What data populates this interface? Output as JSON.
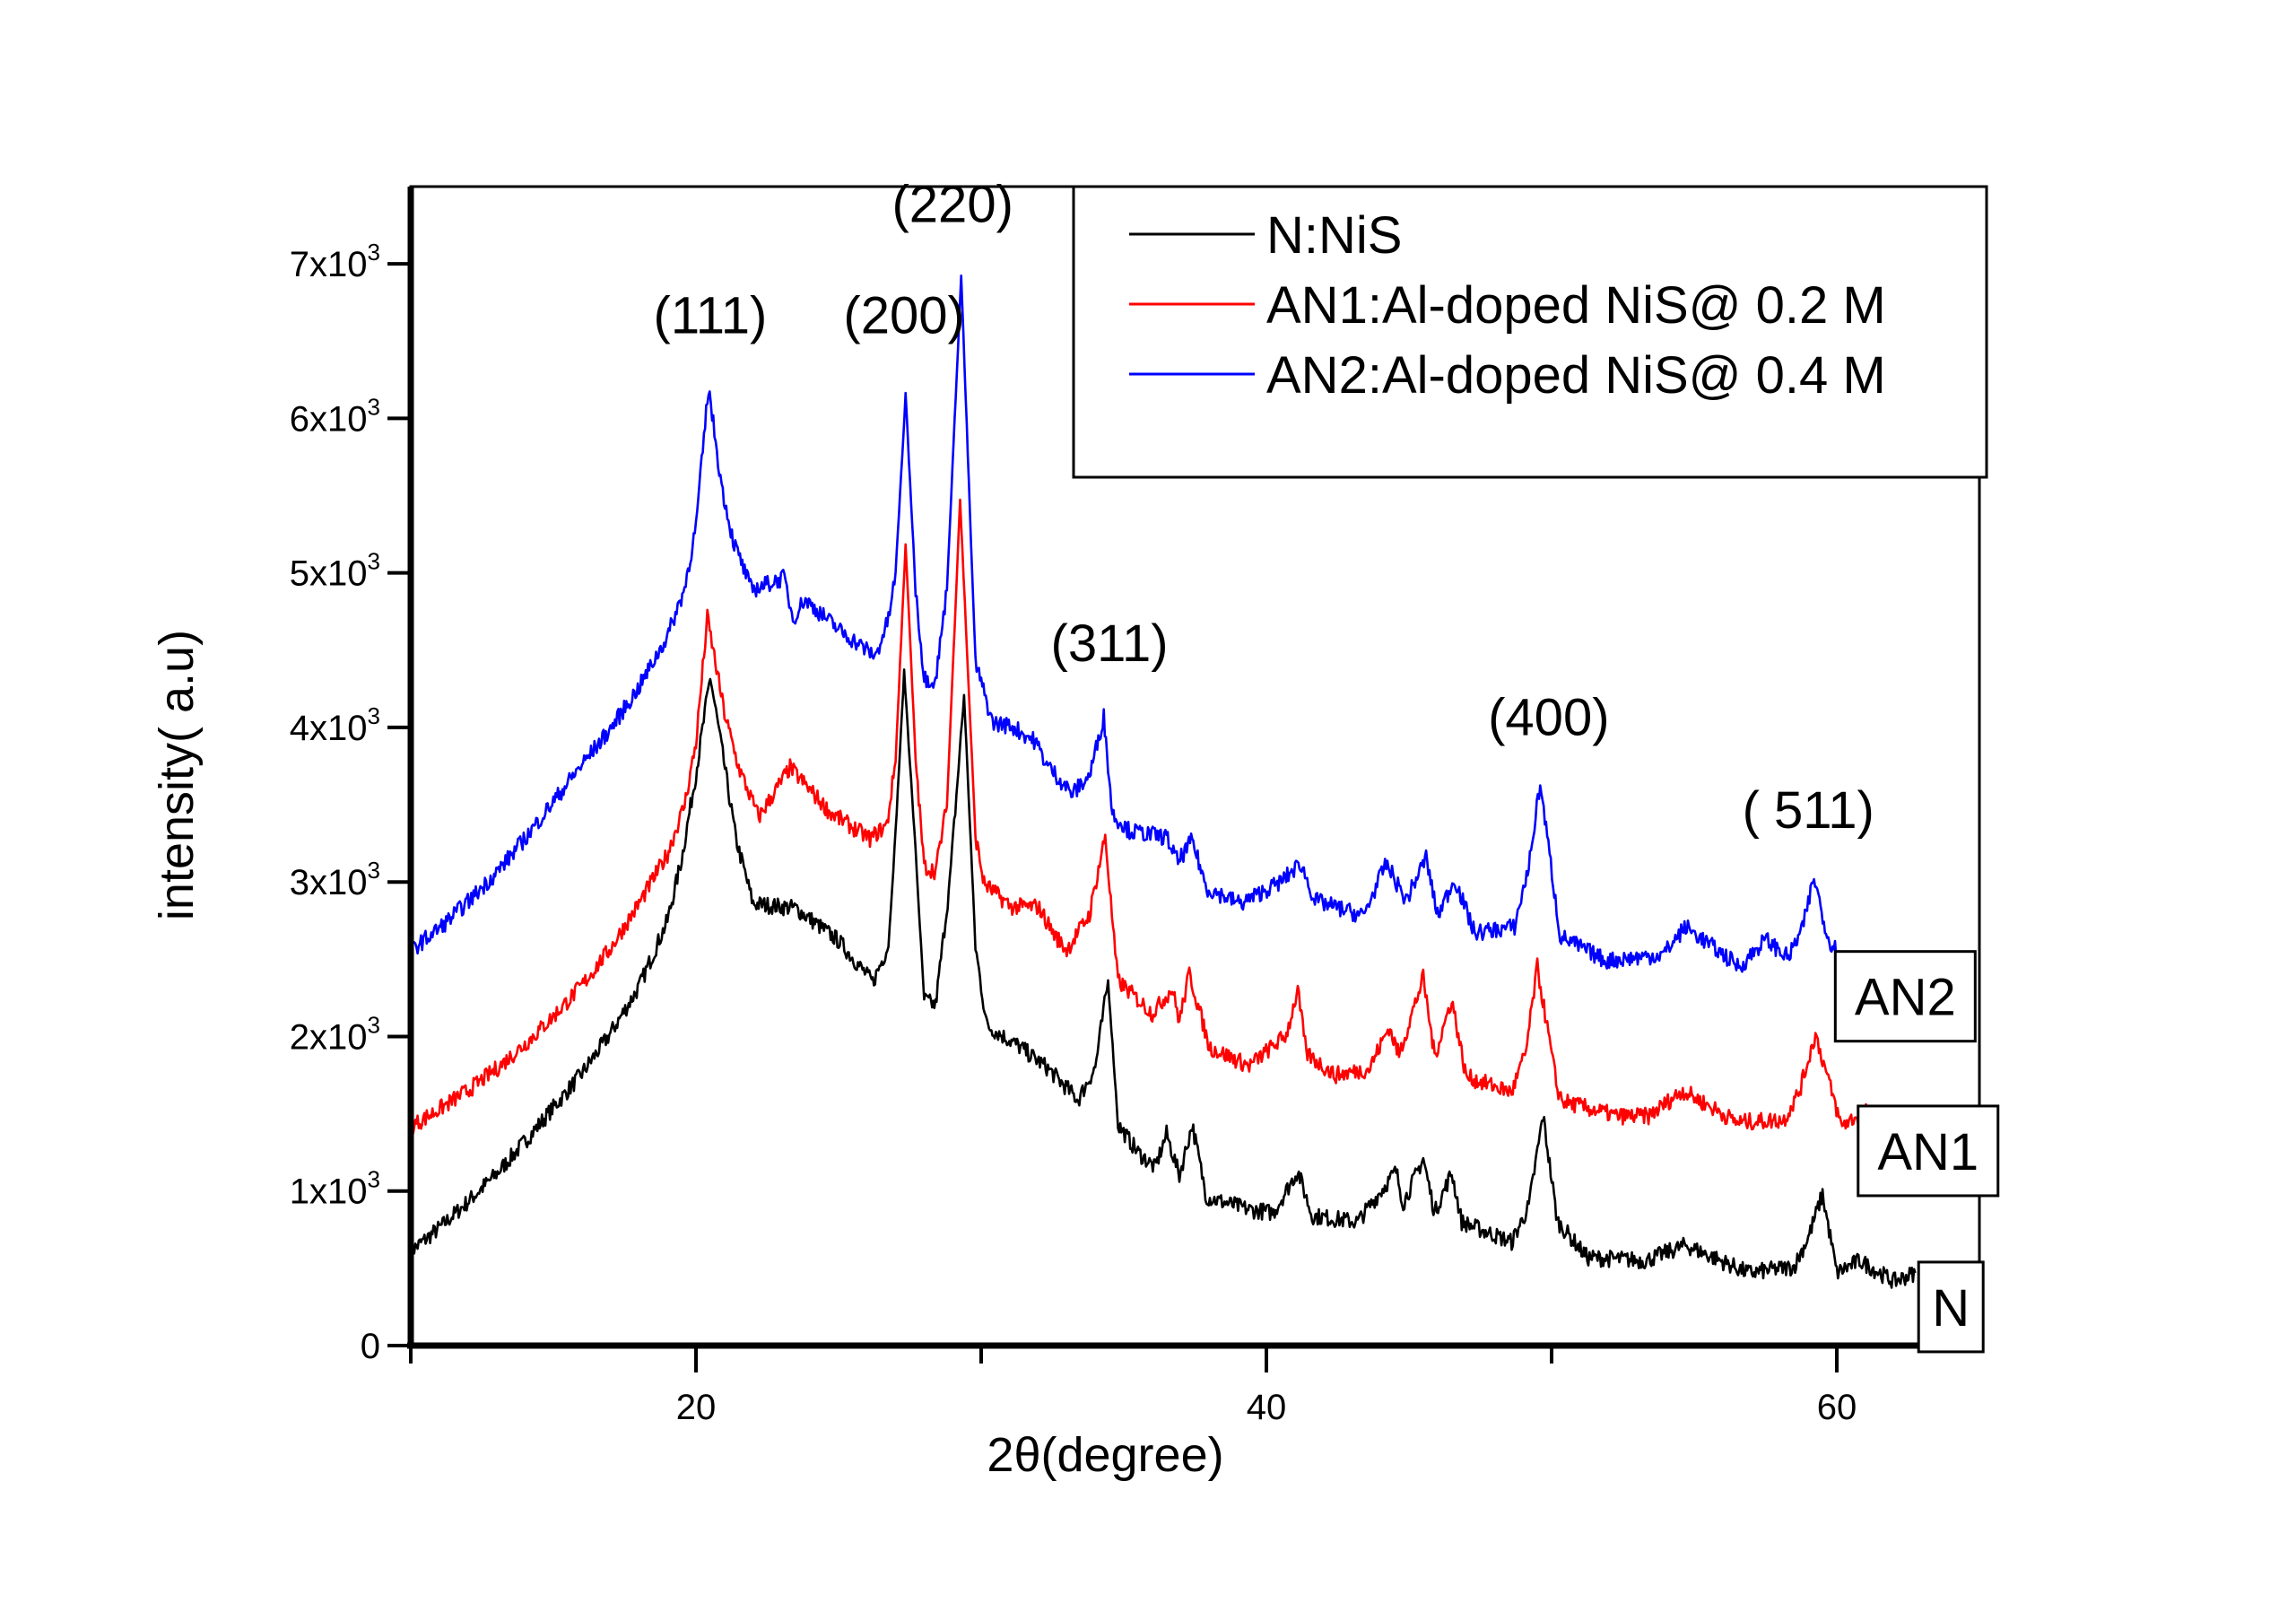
{
  "chart_data": {
    "type": "line",
    "title": "",
    "xlabel": "2θ(degree)",
    "ylabel": "intensity( a.u)",
    "xlim": [
      10,
      65
    ],
    "ylim": [
      0,
      7500
    ],
    "grid": false,
    "x_ticks": [
      {
        "value": 10,
        "label": ""
      },
      {
        "value": 20,
        "label": "20"
      },
      {
        "value": 30,
        "label": ""
      },
      {
        "value": 40,
        "label": "40"
      },
      {
        "value": 50,
        "label": ""
      },
      {
        "value": 60,
        "label": "60"
      }
    ],
    "y_ticks": [
      {
        "value": 0,
        "base": "0",
        "exp": ""
      },
      {
        "value": 1000,
        "base": "1x10",
        "exp": "3"
      },
      {
        "value": 2000,
        "base": "2x10",
        "exp": "3"
      },
      {
        "value": 3000,
        "base": "3x10",
        "exp": "3"
      },
      {
        "value": 4000,
        "base": "4x10",
        "exp": "3"
      },
      {
        "value": 5000,
        "base": "5x10",
        "exp": "3"
      },
      {
        "value": 6000,
        "base": "6x10",
        "exp": "3"
      },
      {
        "value": 7000,
        "base": "7x10",
        "exp": "3"
      }
    ],
    "legend": {
      "placement": "top-right",
      "entries": [
        {
          "series": "N",
          "label": "N:NiS",
          "color": "#000000"
        },
        {
          "series": "AN1",
          "label": "AN1:Al-doped NiS@ 0.2 M",
          "color": "#ff0000"
        },
        {
          "series": "AN2",
          "label": "AN2:Al-doped NiS@ 0.4 M",
          "color": "#0000ff"
        }
      ]
    },
    "series": [
      {
        "name": "N",
        "label": "N:NiS",
        "color": "#000000",
        "end_tag": "N",
        "x": [
          10.0,
          11.0,
          12.0,
          13.0,
          14.0,
          15.0,
          16.0,
          17.0,
          18.0,
          19.0,
          19.5,
          20.0,
          20.5,
          20.9,
          21.4,
          22.0,
          23.5,
          25.0,
          26.2,
          26.75,
          27.0,
          27.3,
          27.7,
          28.0,
          28.4,
          28.9,
          29.4,
          29.8,
          30.2,
          31.3,
          32.3,
          33.4,
          34.0,
          34.45,
          34.8,
          35.5,
          36.1,
          36.5,
          36.95,
          37.4,
          37.9,
          39.4,
          40.25,
          41.1,
          41.6,
          43.2,
          44.55,
          44.8,
          45.5,
          45.9,
          46.5,
          46.85,
          48.6,
          49.2,
          49.7,
          50.2,
          51.25,
          53.3,
          54.7,
          56.9,
          58.5,
          59.0,
          59.5,
          60.0,
          60.8,
          62.0,
          62.75
        ],
        "y": [
          610,
          760,
          930,
          1110,
          1320,
          1540,
          1760,
          2020,
          2320,
          2750,
          3150,
          3700,
          4330,
          3870,
          3280,
          2860,
          2830,
          2620,
          2350,
          2590,
          3330,
          4360,
          3200,
          2240,
          2200,
          3000,
          4210,
          2580,
          2070,
          1940,
          1800,
          1590,
          1800,
          2360,
          1430,
          1250,
          1150,
          1370,
          1100,
          1430,
          960,
          880,
          860,
          1130,
          840,
          800,
          1130,
          920,
          1210,
          860,
          1120,
          800,
          670,
          900,
          1490,
          805,
          570,
          550,
          650,
          470,
          510,
          700,
          980,
          470,
          550,
          415,
          470
        ]
      },
      {
        "name": "AN1",
        "label": "AN1:Al-doped NiS@ 0.2 M",
        "color": "#ff0000",
        "end_tag": "AN1",
        "x": [
          10.0,
          11.0,
          12.0,
          13.0,
          14.0,
          15.0,
          16.0,
          17.0,
          18.0,
          19.0,
          19.6,
          20.0,
          20.4,
          21.0,
          21.5,
          22.2,
          23.3,
          24.7,
          26.1,
          26.7,
          27.0,
          27.35,
          27.7,
          28.0,
          28.4,
          28.8,
          29.26,
          29.8,
          30.1,
          31.05,
          32.0,
          32.6,
          33.0,
          33.8,
          34.35,
          34.7,
          34.8,
          36.0,
          36.7,
          36.95,
          37.3,
          38.0,
          39.4,
          40.7,
          41.1,
          41.4,
          42.4,
          43.6,
          44.3,
          44.65,
          45.5,
          45.9,
          46.5,
          47.0,
          48.6,
          49.1,
          49.5,
          50.2,
          50.4,
          52.3,
          53.4,
          54.6,
          56.5,
          58.15,
          58.7,
          59.25,
          60.15,
          61.1
        ],
        "y": [
          1415,
          1530,
          1650,
          1790,
          1950,
          2130,
          2330,
          2570,
          2860,
          3180,
          3500,
          3900,
          4710,
          4090,
          3740,
          3420,
          3740,
          3450,
          3280,
          3370,
          3790,
          5190,
          3800,
          3100,
          3070,
          3500,
          5475,
          3300,
          2990,
          2840,
          2840,
          2650,
          2560,
          2790,
          3300,
          2530,
          2360,
          2150,
          2310,
          2100,
          2410,
          1930,
          1810,
          2010,
          2300,
          1890,
          1750,
          1790,
          2060,
          1880,
          2380,
          1870,
          2240,
          1740,
          1640,
          1900,
          2450,
          1660,
          1580,
          1485,
          1485,
          1650,
          1445,
          1460,
          1650,
          2015,
          1425,
          1520
        ]
      },
      {
        "name": "AN2",
        "label": "AN2:Al-doped NiS@ 0.4 M",
        "color": "#0000ff",
        "end_tag": "AN2",
        "x": [
          10.0,
          11.0,
          12.0,
          13.0,
          14.0,
          15.0,
          16.0,
          17.0,
          18.0,
          19.0,
          19.6,
          20.0,
          20.44,
          20.9,
          21.3,
          21.95,
          23.1,
          23.4,
          23.8,
          25.1,
          26.3,
          26.75,
          27.0,
          27.35,
          27.7,
          28.0,
          28.4,
          28.8,
          29.3,
          29.8,
          30.4,
          31.05,
          31.9,
          32.3,
          33.2,
          33.8,
          34.3,
          34.6,
          35.2,
          36.5,
          36.9,
          37.4,
          37.9,
          39.1,
          40.5,
          41.2,
          41.7,
          43.4,
          44.2,
          44.9,
          45.6,
          46.0,
          46.6,
          47.3,
          48.7,
          49.2,
          49.6,
          50.3,
          51.9,
          53.9,
          54.7,
          56.6,
          57.5,
          58.3,
          58.8,
          59.2,
          59.7,
          60.25
        ],
        "y": [
          2557,
          2700,
          2870,
          3060,
          3280,
          3520,
          3760,
          3990,
          4260,
          4590,
          4900,
          5300,
          6200,
          5560,
          5210,
          4890,
          4970,
          4700,
          4830,
          4620,
          4460,
          4700,
          5000,
          6150,
          4900,
          4320,
          4300,
          4900,
          6920,
          4420,
          4030,
          4010,
          3910,
          3760,
          3570,
          3690,
          4070,
          3440,
          3330,
          3290,
          3130,
          3270,
          2960,
          2860,
          3000,
          3120,
          2880,
          2780,
          3120,
          2880,
          3160,
          2780,
          3020,
          2670,
          2710,
          3100,
          3640,
          2650,
          2490,
          2530,
          2710,
          2450,
          2630,
          2510,
          2700,
          3030,
          2630,
          2500
        ]
      }
    ],
    "annotations": [
      {
        "text": "(111)",
        "x": 20.5,
        "y": 6550
      },
      {
        "text": "(200)",
        "x": 27.3,
        "y": 6550
      },
      {
        "text": "(220)",
        "x": 29.0,
        "y": 7270
      },
      {
        "text": "(311)",
        "x": 34.5,
        "y": 4430
      },
      {
        "text": "(400)",
        "x": 49.9,
        "y": 3950
      },
      {
        "text": "( 511)",
        "x": 59.0,
        "y": 3350
      }
    ],
    "sample_tags": [
      {
        "text": "AN2",
        "x": 62.4,
        "y": 2260
      },
      {
        "text": "AN1",
        "x": 63.2,
        "y": 1260
      },
      {
        "text": "N",
        "x": 64.0,
        "y": 250
      }
    ]
  }
}
